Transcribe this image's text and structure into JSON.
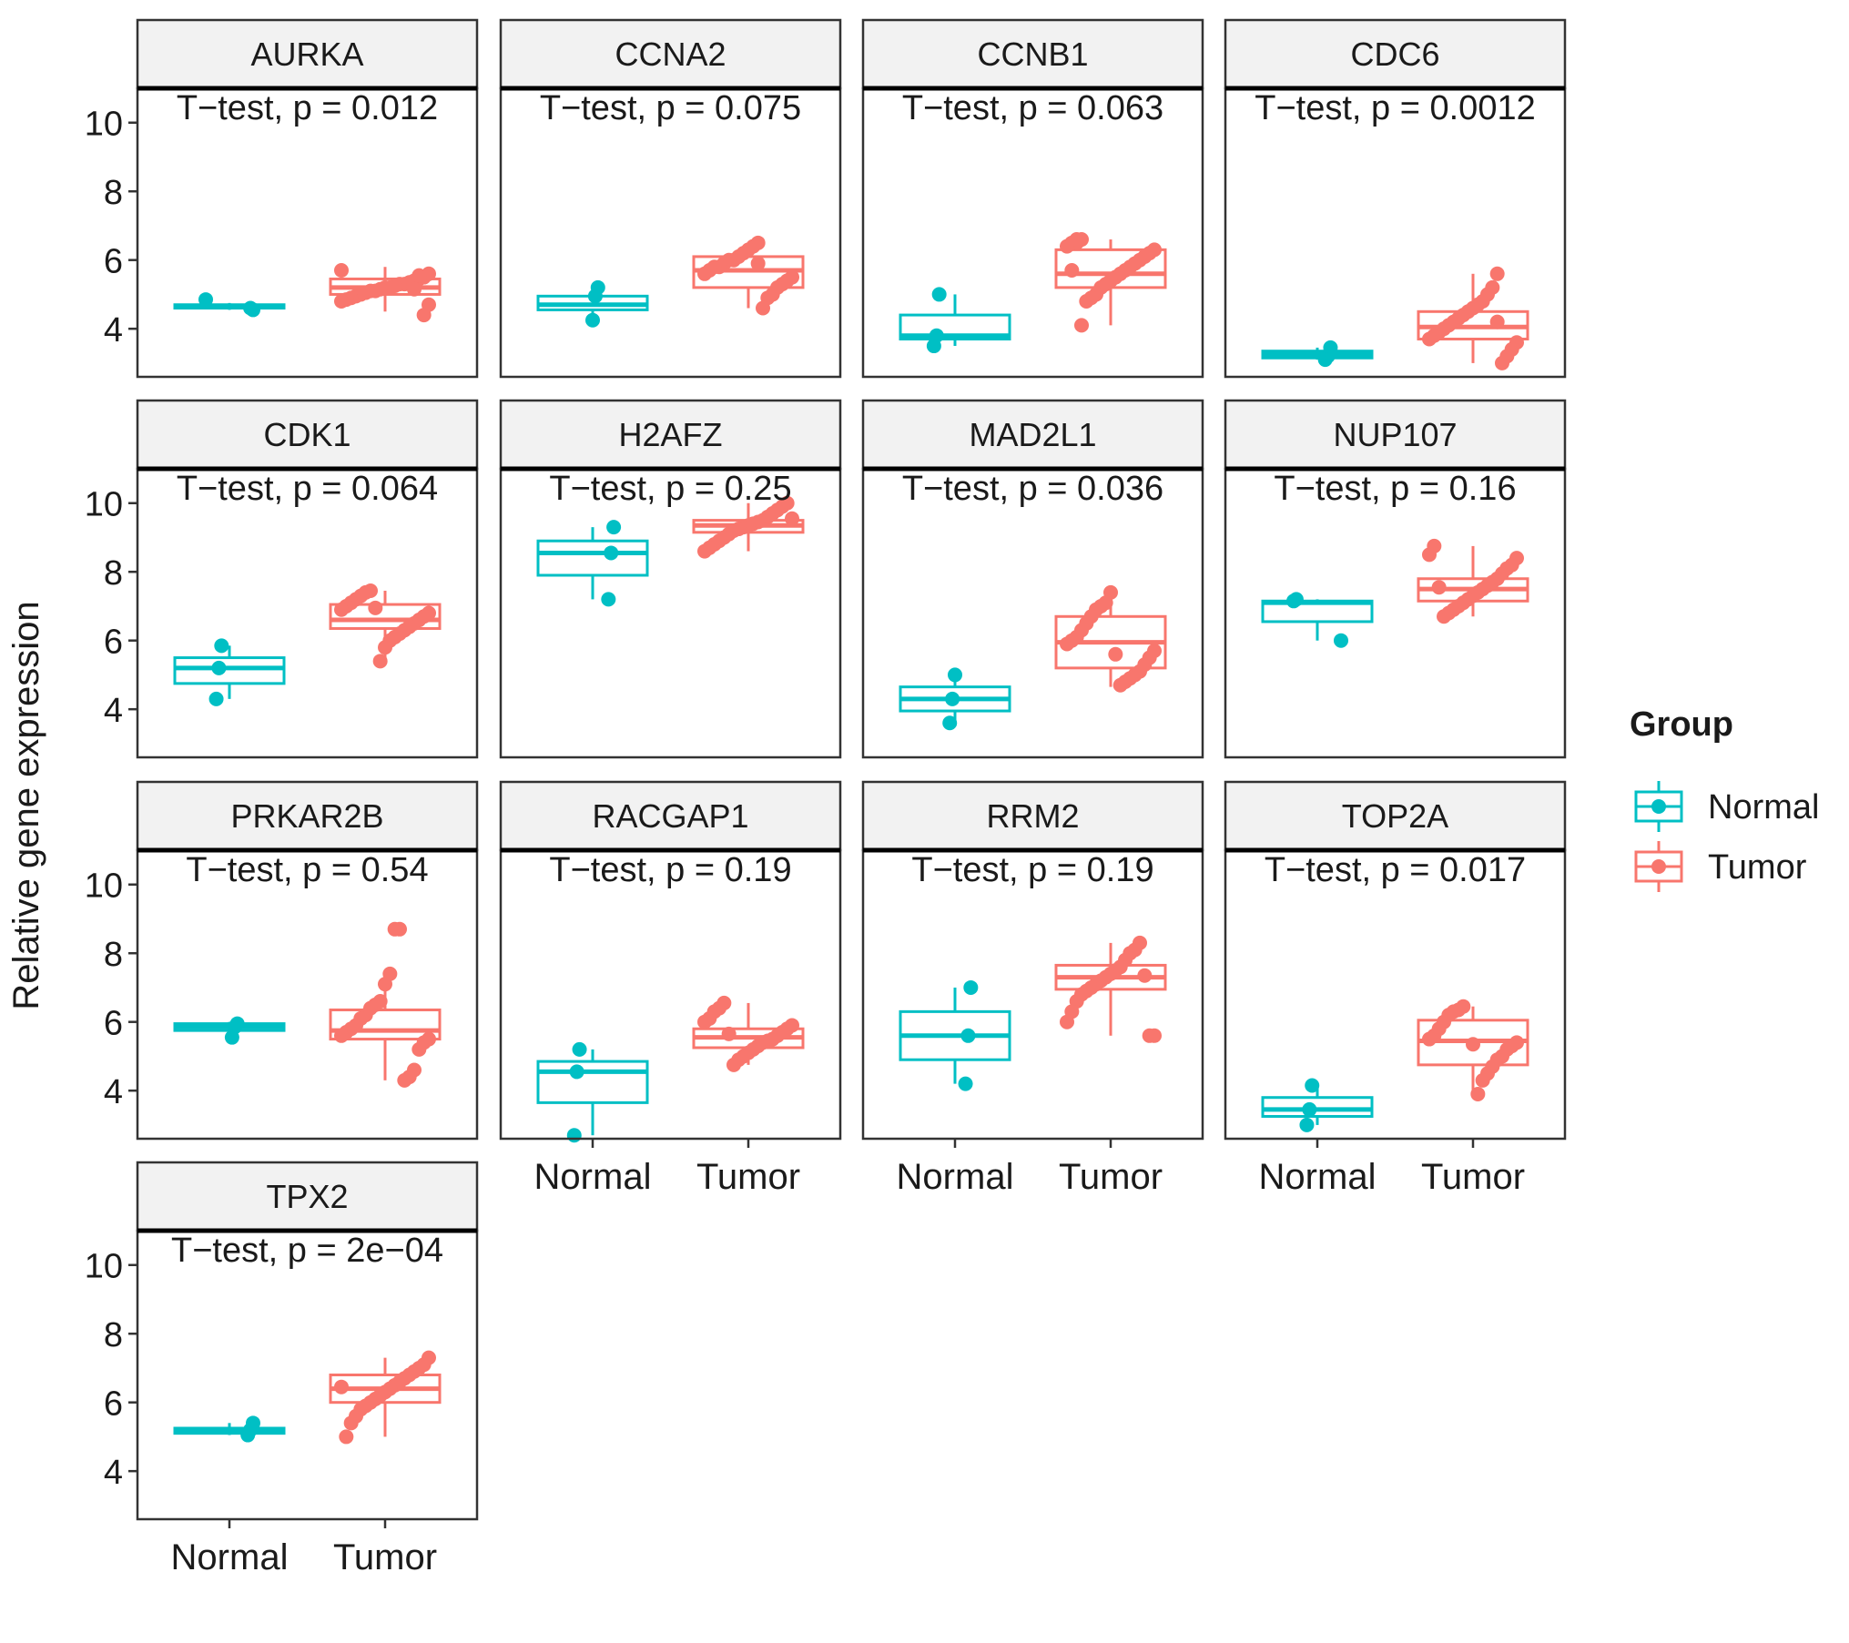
{
  "chart_data": {
    "type": "box",
    "ylabel": "Relative gene expression",
    "yticks": [
      4,
      6,
      8,
      10
    ],
    "ylim": [
      2.6,
      11.0
    ],
    "categories": [
      "Normal",
      "Tumor"
    ],
    "legend": {
      "title": "Group",
      "entries": [
        {
          "label": "Normal",
          "color": "#00BFC4"
        },
        {
          "label": "Tumor",
          "color": "#F8766D"
        }
      ]
    },
    "panels": [
      {
        "gene": "AURKA",
        "test": "T−test, p = 0.012",
        "normal": {
          "box": [
            4.55,
            4.6,
            4.65,
            4.7,
            4.75
          ],
          "points": [
            4.85,
            4.55,
            4.6
          ]
        },
        "tumor": {
          "box": [
            4.5,
            5.0,
            5.2,
            5.45,
            5.8
          ],
          "points": [
            5.7,
            5.6,
            5.5,
            5.45,
            5.4,
            5.35,
            5.3,
            5.3,
            5.25,
            5.2,
            5.2,
            5.15,
            5.1,
            5.1,
            5.05,
            5.0,
            4.95,
            4.9,
            4.85,
            4.8,
            4.7,
            4.4,
            5.55,
            5.15
          ]
        }
      },
      {
        "gene": "CCNA2",
        "test": "T−test, p = 0.075",
        "normal": {
          "box": [
            4.3,
            4.55,
            4.7,
            4.95,
            5.2
          ],
          "points": [
            5.2,
            4.95,
            4.25
          ]
        },
        "tumor": {
          "box": [
            4.6,
            5.2,
            5.7,
            6.1,
            6.5
          ],
          "points": [
            6.5,
            6.4,
            6.3,
            6.2,
            6.1,
            6.0,
            6.0,
            5.9,
            5.8,
            5.8,
            5.7,
            5.6,
            5.5,
            5.4,
            5.3,
            5.2,
            5.0,
            4.9,
            4.6,
            5.9
          ]
        }
      },
      {
        "gene": "CCNB1",
        "test": "T−test, p = 0.063",
        "normal": {
          "box": [
            3.5,
            3.7,
            3.8,
            4.4,
            5.0
          ],
          "points": [
            5.0,
            3.8,
            3.5
          ]
        },
        "tumor": {
          "box": [
            4.1,
            5.2,
            5.6,
            6.3,
            6.6
          ],
          "points": [
            6.6,
            6.5,
            6.5,
            6.4,
            6.3,
            6.2,
            6.1,
            6.0,
            5.9,
            5.8,
            5.7,
            5.6,
            5.5,
            5.4,
            5.3,
            5.2,
            5.0,
            4.9,
            4.8,
            4.1,
            6.6,
            5.7
          ]
        }
      },
      {
        "gene": "CDC6",
        "test": "T−test, p = 0.0012",
        "normal": {
          "box": [
            3.1,
            3.15,
            3.25,
            3.35,
            3.45
          ],
          "points": [
            3.45,
            3.2,
            3.1
          ]
        },
        "tumor": {
          "box": [
            3.0,
            3.7,
            4.05,
            4.5,
            5.6
          ],
          "points": [
            5.6,
            5.2,
            5.0,
            4.8,
            4.7,
            4.6,
            4.5,
            4.4,
            4.3,
            4.2,
            4.1,
            4.0,
            3.9,
            3.8,
            3.7,
            3.6,
            3.4,
            3.2,
            3.0,
            4.2
          ]
        }
      },
      {
        "gene": "CDK1",
        "test": "T−test, p = 0.064",
        "normal": {
          "box": [
            4.3,
            4.75,
            5.2,
            5.5,
            5.85
          ],
          "points": [
            5.85,
            5.2,
            4.3
          ]
        },
        "tumor": {
          "box": [
            5.4,
            6.35,
            6.6,
            7.05,
            7.45
          ],
          "points": [
            7.45,
            7.4,
            7.3,
            7.2,
            7.1,
            7.0,
            6.9,
            6.8,
            6.7,
            6.6,
            6.5,
            6.4,
            6.3,
            6.2,
            6.1,
            6.0,
            5.8,
            5.4,
            6.95
          ]
        }
      },
      {
        "gene": "H2AFZ",
        "test": "T−test, p = 0.25",
        "normal": {
          "box": [
            7.2,
            7.9,
            8.55,
            8.9,
            9.3
          ],
          "points": [
            9.3,
            8.55,
            7.2
          ]
        },
        "tumor": {
          "box": [
            8.6,
            9.15,
            9.35,
            9.5,
            10.0
          ],
          "points": [
            10.0,
            9.9,
            9.8,
            9.7,
            9.6,
            9.5,
            9.45,
            9.4,
            9.35,
            9.3,
            9.25,
            9.2,
            9.1,
            9.0,
            8.9,
            8.8,
            8.7,
            8.6,
            9.55
          ]
        }
      },
      {
        "gene": "MAD2L1",
        "test": "T−test, p = 0.036",
        "normal": {
          "box": [
            3.6,
            3.95,
            4.3,
            4.65,
            5.0
          ],
          "points": [
            5.0,
            4.3,
            3.6
          ]
        },
        "tumor": {
          "box": [
            4.65,
            5.2,
            5.95,
            6.7,
            7.4
          ],
          "points": [
            7.4,
            7.1,
            7.0,
            6.9,
            6.7,
            6.5,
            6.3,
            6.1,
            6.0,
            5.9,
            5.7,
            5.5,
            5.3,
            5.1,
            5.0,
            4.9,
            4.8,
            4.7,
            5.6
          ]
        }
      },
      {
        "gene": "NUP107",
        "test": "T−test, p = 0.16",
        "normal": {
          "box": [
            6.0,
            6.55,
            7.1,
            7.15,
            7.2
          ],
          "points": [
            7.2,
            7.15,
            6.0
          ]
        },
        "tumor": {
          "box": [
            6.7,
            7.15,
            7.5,
            7.8,
            8.75
          ],
          "points": [
            8.75,
            8.5,
            8.4,
            8.2,
            8.1,
            7.95,
            7.8,
            7.7,
            7.6,
            7.5,
            7.4,
            7.3,
            7.2,
            7.1,
            7.0,
            6.9,
            6.8,
            6.7,
            7.55
          ]
        }
      },
      {
        "gene": "PRKAR2B",
        "test": "T−test, p = 0.54",
        "normal": {
          "box": [
            5.55,
            5.75,
            5.85,
            5.95,
            6.0
          ],
          "points": [
            5.95,
            5.85,
            5.55
          ]
        },
        "tumor": {
          "box": [
            4.3,
            5.5,
            5.75,
            6.35,
            7.3
          ],
          "points": [
            8.7,
            8.7,
            7.4,
            7.1,
            6.6,
            6.5,
            6.4,
            6.2,
            6.1,
            5.9,
            5.8,
            5.7,
            5.6,
            5.5,
            5.4,
            5.2,
            4.6,
            4.4,
            4.3
          ]
        }
      },
      {
        "gene": "RACGAP1",
        "test": "T−test, p = 0.19",
        "normal": {
          "box": [
            2.7,
            3.65,
            4.55,
            4.85,
            5.2
          ],
          "points": [
            5.2,
            4.55,
            2.7
          ]
        },
        "tumor": {
          "box": [
            4.75,
            5.25,
            5.55,
            5.8,
            6.55
          ],
          "points": [
            6.55,
            6.4,
            6.3,
            6.1,
            6.0,
            5.9,
            5.8,
            5.7,
            5.6,
            5.5,
            5.45,
            5.4,
            5.3,
            5.2,
            5.1,
            5.0,
            4.9,
            4.75,
            5.65
          ]
        }
      },
      {
        "gene": "RRM2",
        "test": "T−test, p = 0.19",
        "normal": {
          "box": [
            4.2,
            4.9,
            5.6,
            6.3,
            7.0
          ],
          "points": [
            7.0,
            5.6,
            4.2
          ]
        },
        "tumor": {
          "box": [
            5.6,
            6.95,
            7.3,
            7.65,
            8.3
          ],
          "points": [
            8.3,
            8.1,
            8.0,
            7.8,
            7.6,
            7.5,
            7.4,
            7.3,
            7.2,
            7.1,
            7.0,
            6.9,
            6.8,
            6.6,
            6.3,
            6.0,
            5.6,
            5.6,
            7.35
          ]
        }
      },
      {
        "gene": "TOP2A",
        "test": "T−test, p = 0.017",
        "normal": {
          "box": [
            3.0,
            3.25,
            3.45,
            3.8,
            4.15
          ],
          "points": [
            4.15,
            3.45,
            3.0
          ]
        },
        "tumor": {
          "box": [
            3.9,
            4.75,
            5.45,
            6.05,
            6.45
          ],
          "points": [
            6.45,
            6.35,
            6.3,
            6.2,
            6.0,
            5.8,
            5.6,
            5.5,
            5.4,
            5.3,
            5.2,
            5.0,
            4.9,
            4.7,
            4.5,
            4.3,
            3.9,
            5.35
          ]
        }
      },
      {
        "gene": "TPX2",
        "test": "T−test, p = 2e−04",
        "normal": {
          "box": [
            5.05,
            5.1,
            5.15,
            5.25,
            5.4
          ],
          "points": [
            5.4,
            5.2,
            5.05
          ]
        },
        "tumor": {
          "box": [
            5.0,
            6.0,
            6.4,
            6.8,
            7.3
          ],
          "points": [
            7.3,
            7.1,
            7.0,
            6.9,
            6.8,
            6.7,
            6.6,
            6.5,
            6.4,
            6.3,
            6.2,
            6.1,
            6.0,
            5.9,
            5.8,
            5.6,
            5.4,
            5.0,
            6.45
          ]
        }
      }
    ]
  }
}
